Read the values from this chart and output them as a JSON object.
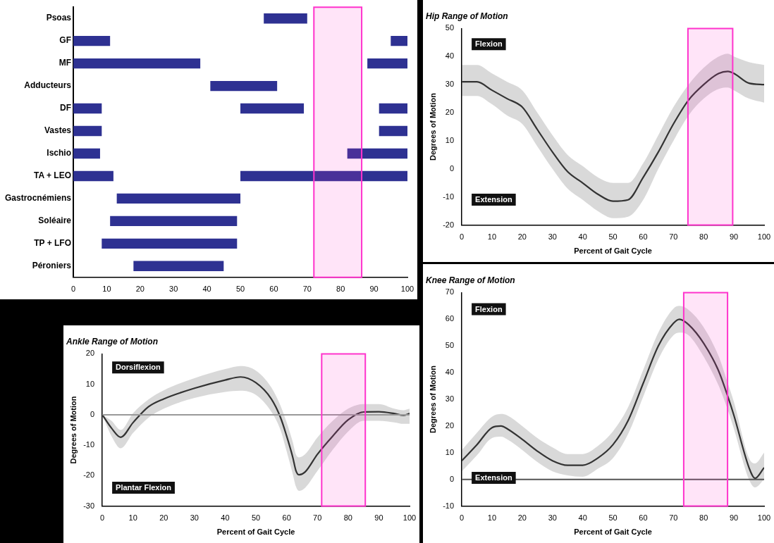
{
  "chart_data": [
    {
      "type": "bar",
      "orientation": "horizontal",
      "categories": [
        "Psoas",
        "GF",
        "MF",
        "Adducteurs",
        "DF",
        "Vastes",
        "Ischio",
        "TA + LEO",
        "Gastrocnémiens",
        "Soléaire",
        "TP + LFO",
        "Péroniers"
      ],
      "series": [
        {
          "color": "#2e3192",
          "base": [
            57,
            0,
            0,
            41,
            0,
            0,
            0,
            0,
            13,
            11,
            8.5,
            18
          ],
          "values": [
            13,
            11,
            38,
            20,
            8.5,
            8.5,
            8,
            12,
            37,
            38,
            40.5,
            27
          ]
        },
        {
          "color": "#2e3192",
          "base": [
            null,
            95,
            88,
            null,
            50,
            91.5,
            82,
            50,
            null,
            null,
            null,
            null
          ],
          "values": [
            null,
            5,
            12,
            null,
            19,
            8.5,
            18,
            50,
            null,
            null,
            null,
            null
          ]
        },
        {
          "color": "#2e3192",
          "base": [
            null,
            null,
            null,
            null,
            91.5,
            null,
            null,
            null,
            null,
            null,
            null,
            null
          ],
          "values": [
            null,
            null,
            null,
            null,
            8.5,
            null,
            null,
            null,
            null,
            null,
            null,
            null
          ]
        }
      ],
      "xlim": [
        0,
        100
      ],
      "xticks": [
        0,
        10,
        20,
        30,
        40,
        50,
        60,
        70,
        80,
        90,
        100
      ],
      "grid": false,
      "bands": [
        {
          "axis": "x",
          "from": 72,
          "to": 86.3,
          "color": "#ff33cc"
        }
      ]
    },
    {
      "type": "line",
      "title": "Hip Range of Motion",
      "xlabel": "Percent of Gait Cycle",
      "ylabel": "Degrees of Motion",
      "annotations": [
        "Flexion",
        "Extension"
      ],
      "x": [
        0,
        5,
        10,
        15,
        20,
        25,
        30,
        35,
        40,
        45,
        50,
        55,
        60,
        65,
        70,
        75,
        80,
        85,
        88,
        90,
        95,
        100
      ],
      "series": [
        {
          "color": "#333333",
          "values": [
            31,
            31,
            28,
            25,
            22,
            14,
            6,
            -1,
            -5,
            -9,
            -11.5,
            -11,
            -3,
            6,
            16,
            24.5,
            30,
            34,
            34.7,
            34,
            30.5,
            30
          ],
          "upper": [
            37,
            37,
            34,
            31,
            28,
            20,
            12,
            5,
            1,
            -3,
            -5,
            -5,
            2,
            12,
            22,
            30,
            36,
            40,
            41,
            40,
            38,
            37
          ],
          "lower": [
            26,
            26,
            23,
            19,
            16,
            8,
            0,
            -7,
            -11,
            -15,
            -17.5,
            -17,
            -11,
            0,
            10,
            19,
            25,
            28.5,
            29,
            28,
            25,
            23.6
          ]
        }
      ],
      "xlim": [
        0,
        100
      ],
      "xticks": [
        0,
        10,
        20,
        30,
        40,
        50,
        60,
        70,
        80,
        90,
        100
      ],
      "ylim": [
        -20,
        50
      ],
      "yticks": [
        -20,
        -10,
        0,
        10,
        20,
        30,
        40,
        50
      ],
      "grid": false,
      "marker": "none",
      "bands": [
        {
          "axis": "x",
          "from": 74.8,
          "to": 89.6,
          "color": "#ff33cc"
        }
      ]
    },
    {
      "type": "line",
      "title": "Ankle Range of Motion",
      "xlabel": "Percent of Gait Cycle",
      "ylabel": "Degrees of Motion",
      "annotations": [
        "Dorsiflexion",
        "Plantar Flexion"
      ],
      "x": [
        0,
        3,
        6,
        10,
        15,
        20,
        30,
        40,
        45,
        50,
        55,
        58,
        60,
        62,
        63,
        64,
        66,
        70,
        75,
        80,
        85,
        90,
        95,
        98,
        100
      ],
      "series": [
        {
          "color": "#333333",
          "values": [
            0,
            -4.4,
            -7.4,
            -2.6,
            2.6,
            5.2,
            8.7,
            11.4,
            12.4,
            10.5,
            5.2,
            -0.9,
            -7,
            -14,
            -18.3,
            -19.7,
            -18.8,
            -13,
            -7,
            -1.7,
            0.9,
            1,
            0.4,
            -0.2,
            0.4
          ],
          "upper": [
            0,
            -2,
            -5,
            0.5,
            5,
            8,
            12,
            15,
            16,
            14.5,
            9,
            3,
            -2.5,
            -9,
            -13,
            -14,
            -13,
            -7.5,
            -2,
            2,
            3.5,
            3.5,
            2,
            1.5,
            2
          ],
          "lower": [
            0,
            -7,
            -11,
            -6,
            -1,
            2,
            5.5,
            7.5,
            7.9,
            6.5,
            1,
            -5,
            -12,
            -19.5,
            -23.5,
            -25,
            -24,
            -18.5,
            -11.5,
            -5.5,
            -2,
            -2,
            -2.5,
            -3,
            -3
          ]
        }
      ],
      "xlim": [
        0,
        100
      ],
      "xticks": [
        0,
        10,
        20,
        30,
        40,
        50,
        60,
        70,
        80,
        90,
        100
      ],
      "ylim": [
        -30,
        20
      ],
      "yticks": [
        -30,
        -20,
        -10,
        0,
        10,
        20
      ],
      "grid": false,
      "marker": "none",
      "ref_lines": [
        {
          "axis": "y",
          "value": 0,
          "color": "#999999"
        }
      ],
      "bands": [
        {
          "axis": "x",
          "from": 71.4,
          "to": 85.6,
          "color": "#ff33cc"
        }
      ]
    },
    {
      "type": "line",
      "title": "Knee Range of Motion",
      "xlabel": "Percent of Gait Cycle",
      "ylabel": "Degrees of Motion",
      "annotations": [
        "Flexion",
        "Extension"
      ],
      "x": [
        0,
        5,
        10,
        13,
        15,
        20,
        25,
        30,
        35,
        40,
        45,
        50,
        55,
        60,
        65,
        70,
        72,
        75,
        80,
        85,
        88,
        90,
        95,
        97,
        100
      ],
      "series": [
        {
          "color": "#333333",
          "values": [
            7,
            13,
            19.4,
            20,
            19,
            15,
            10.6,
            7,
            5.3,
            5.3,
            8,
            13,
            22,
            36,
            50,
            58.5,
            60,
            58,
            51,
            40.5,
            31,
            24,
            4.4,
            0.4,
            4.4
          ],
          "upper": [
            11,
            17.5,
            23.5,
            24.5,
            24,
            20,
            15.5,
            12,
            9.5,
            9.5,
            12.5,
            18,
            27,
            41,
            55,
            64,
            65,
            63.5,
            57,
            46,
            36,
            29,
            8,
            6,
            10
          ],
          "lower": [
            3,
            9,
            15.5,
            16,
            15,
            11,
            6.5,
            3,
            1.5,
            1,
            4,
            8,
            17,
            31,
            45,
            54,
            55,
            54,
            46,
            35,
            26,
            19,
            0,
            -3,
            0
          ]
        }
      ],
      "xlim": [
        0,
        100
      ],
      "xticks": [
        0,
        10,
        20,
        30,
        40,
        50,
        60,
        70,
        80,
        90,
        100
      ],
      "ylim": [
        -10,
        70
      ],
      "yticks": [
        -10,
        0,
        10,
        20,
        30,
        40,
        50,
        60,
        70
      ],
      "grid": false,
      "marker": "none",
      "ref_lines": [
        {
          "axis": "y",
          "value": 0,
          "color": "#555555"
        }
      ],
      "bands": [
        {
          "axis": "x",
          "from": 73.4,
          "to": 87.9,
          "color": "#ff33cc"
        }
      ]
    }
  ]
}
